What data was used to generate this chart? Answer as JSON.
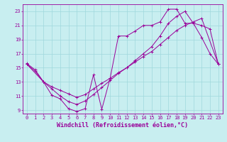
{
  "background_color": "#c8eef0",
  "grid_color": "#9fd8dc",
  "line_color": "#990099",
  "xlabel": "Windchill (Refroidissement éolien,°C)",
  "xlim": [
    -0.5,
    23.5
  ],
  "ylim": [
    8.5,
    24.0
  ],
  "xticks": [
    0,
    1,
    2,
    3,
    4,
    5,
    6,
    7,
    8,
    9,
    10,
    11,
    12,
    13,
    14,
    15,
    16,
    17,
    18,
    19,
    20,
    21,
    22,
    23
  ],
  "yticks": [
    9,
    11,
    13,
    15,
    17,
    19,
    21,
    23
  ],
  "tick_fontsize": 5,
  "xlabel_fontsize": 6,
  "line1_x": [
    0,
    1,
    2,
    3,
    4,
    5,
    6,
    7,
    8,
    9,
    10,
    11,
    12,
    13,
    14,
    15,
    16,
    17,
    18,
    19,
    20,
    21,
    22,
    23
  ],
  "line1_y": [
    15.6,
    14.7,
    13.0,
    11.1,
    10.6,
    9.2,
    8.8,
    9.2,
    14.0,
    9.1,
    13.5,
    19.5,
    19.5,
    20.2,
    21.0,
    21.0,
    21.5,
    23.3,
    23.3,
    21.3,
    21.3,
    19.3,
    17.0,
    15.5
  ],
  "line2_x": [
    0,
    2,
    3,
    4,
    5,
    6,
    7,
    8,
    9,
    10,
    11,
    12,
    13,
    14,
    15,
    16,
    17,
    18,
    19,
    20,
    21,
    23
  ],
  "line2_y": [
    15.5,
    13.0,
    12.3,
    11.8,
    11.3,
    10.8,
    11.2,
    12.0,
    12.8,
    13.5,
    14.3,
    15.0,
    15.8,
    16.6,
    17.3,
    18.3,
    19.3,
    20.3,
    21.0,
    21.5,
    22.0,
    15.5
  ],
  "line3_x": [
    0,
    1,
    2,
    3,
    4,
    5,
    6,
    7,
    8,
    9,
    10,
    11,
    12,
    13,
    14,
    15,
    16,
    17,
    18,
    19,
    20,
    21,
    22,
    23
  ],
  "line3_y": [
    15.5,
    14.5,
    13.0,
    12.0,
    11.0,
    10.2,
    9.8,
    10.3,
    11.2,
    12.2,
    13.2,
    14.2,
    15.0,
    16.0,
    17.0,
    18.0,
    19.5,
    21.3,
    22.3,
    23.0,
    21.3,
    21.0,
    20.5,
    15.5
  ]
}
